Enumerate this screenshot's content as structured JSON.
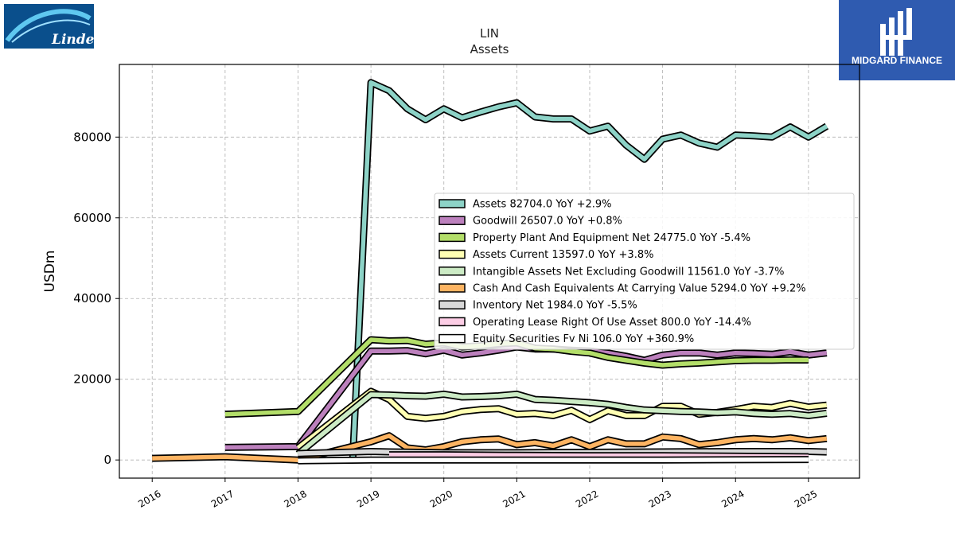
{
  "logos": {
    "left": {
      "text": "Linde",
      "bg": "#0a4f8c"
    },
    "right": {
      "text": "MIDGARD FINANCE",
      "bg": "#2f5bb0"
    }
  },
  "chart_data": {
    "type": "line",
    "title": "LIN",
    "subtitle": "Assets",
    "xlabel": "",
    "ylabel": "USDm",
    "xlim": [
      2015.55,
      2025.7
    ],
    "ylim": [
      -4500,
      98000
    ],
    "x_ticks": [
      "2016",
      "2017",
      "2018",
      "2019",
      "2020",
      "2021",
      "2022",
      "2023",
      "2024",
      "2025"
    ],
    "y_ticks": [
      0,
      20000,
      40000,
      60000,
      80000
    ],
    "y_tick_labels": [
      "0",
      "20000",
      "40000",
      "60000",
      "80000"
    ],
    "grid": true,
    "legend_position": "center-right",
    "series": [
      {
        "name": "Assets",
        "legend": "Assets  82704.0 YoY +2.9%",
        "color": "#8dd3c7",
        "points": [
          [
            2018.75,
            0
          ],
          [
            2019.0,
            93500
          ],
          [
            2019.25,
            91500
          ],
          [
            2019.5,
            87000
          ],
          [
            2019.75,
            84300
          ],
          [
            2020.0,
            87000
          ],
          [
            2020.25,
            84800
          ],
          [
            2020.5,
            86200
          ],
          [
            2020.75,
            87500
          ],
          [
            2021.0,
            88500
          ],
          [
            2021.25,
            85000
          ],
          [
            2021.5,
            84500
          ],
          [
            2021.75,
            84500
          ],
          [
            2022.0,
            81500
          ],
          [
            2022.25,
            82700
          ],
          [
            2022.5,
            78000
          ],
          [
            2022.75,
            74500
          ],
          [
            2023.0,
            79500
          ],
          [
            2023.25,
            80500
          ],
          [
            2023.5,
            78500
          ],
          [
            2023.75,
            77500
          ],
          [
            2024.0,
            80500
          ],
          [
            2024.25,
            80300
          ],
          [
            2024.5,
            80000
          ],
          [
            2024.75,
            82500
          ],
          [
            2025.0,
            80000
          ],
          [
            2025.25,
            82704
          ]
        ]
      },
      {
        "name": "Goodwill",
        "legend": "Goodwill  26507.0 YoY +0.8%",
        "color": "#bc80bd",
        "points": [
          [
            2017.0,
            3100
          ],
          [
            2018.0,
            3300
          ],
          [
            2019.0,
            27000
          ],
          [
            2019.25,
            27000
          ],
          [
            2019.5,
            27100
          ],
          [
            2019.75,
            26300
          ],
          [
            2020.0,
            27200
          ],
          [
            2020.25,
            26000
          ],
          [
            2020.5,
            26500
          ],
          [
            2020.75,
            27200
          ],
          [
            2021.0,
            28000
          ],
          [
            2021.25,
            27500
          ],
          [
            2021.5,
            27500
          ],
          [
            2021.75,
            27200
          ],
          [
            2022.0,
            27000
          ],
          [
            2022.25,
            26500
          ],
          [
            2022.5,
            25700
          ],
          [
            2022.75,
            24700
          ],
          [
            2023.0,
            26000
          ],
          [
            2023.25,
            26500
          ],
          [
            2023.5,
            26500
          ],
          [
            2023.75,
            26000
          ],
          [
            2024.0,
            26500
          ],
          [
            2024.25,
            26400
          ],
          [
            2024.5,
            26200
          ],
          [
            2024.75,
            26800
          ],
          [
            2025.0,
            26000
          ],
          [
            2025.25,
            26507
          ]
        ]
      },
      {
        "name": "Property Plant And Equipment Net",
        "legend": "Property Plant And Equipment Net  24775.0 YoY -5.4%",
        "color": "#b3de69",
        "points": [
          [
            2017.0,
            11300
          ],
          [
            2018.0,
            12000
          ],
          [
            2019.0,
            29800
          ],
          [
            2019.25,
            29500
          ],
          [
            2019.5,
            29600
          ],
          [
            2019.75,
            28700
          ],
          [
            2020.0,
            29000
          ],
          [
            2020.25,
            28000
          ],
          [
            2020.5,
            28300
          ],
          [
            2020.75,
            28800
          ],
          [
            2021.0,
            29000
          ],
          [
            2021.25,
            27700
          ],
          [
            2021.5,
            27500
          ],
          [
            2021.75,
            26900
          ],
          [
            2022.0,
            26500
          ],
          [
            2022.25,
            25400
          ],
          [
            2022.5,
            24700
          ],
          [
            2022.75,
            24000
          ],
          [
            2023.0,
            23500
          ],
          [
            2023.25,
            23800
          ],
          [
            2023.5,
            24000
          ],
          [
            2023.75,
            24300
          ],
          [
            2024.0,
            24600
          ],
          [
            2024.25,
            24700
          ],
          [
            2024.5,
            24700
          ],
          [
            2024.75,
            24800
          ],
          [
            2025.0,
            24775
          ]
        ]
      },
      {
        "name": "Assets Current",
        "legend": "Assets Current  13597.0 YoY +3.8%",
        "color": "#ffffb3",
        "points": [
          [
            2018.0,
            3000
          ],
          [
            2019.0,
            17000
          ],
          [
            2019.25,
            15000
          ],
          [
            2019.5,
            10800
          ],
          [
            2019.75,
            10300
          ],
          [
            2020.0,
            10800
          ],
          [
            2020.25,
            12000
          ],
          [
            2020.5,
            12500
          ],
          [
            2020.75,
            12700
          ],
          [
            2021.0,
            11300
          ],
          [
            2021.25,
            11500
          ],
          [
            2021.5,
            11000
          ],
          [
            2021.75,
            12300
          ],
          [
            2022.0,
            10000
          ],
          [
            2022.25,
            12200
          ],
          [
            2022.5,
            11000
          ],
          [
            2022.75,
            11000
          ],
          [
            2023.0,
            13300
          ],
          [
            2023.25,
            13300
          ],
          [
            2023.5,
            11300
          ],
          [
            2023.75,
            11800
          ],
          [
            2024.0,
            12500
          ],
          [
            2024.25,
            13300
          ],
          [
            2024.5,
            13000
          ],
          [
            2024.75,
            14000
          ],
          [
            2025.0,
            13100
          ],
          [
            2025.25,
            13597
          ]
        ]
      },
      {
        "name": "Intangible Assets Net Excluding Goodwill",
        "legend": "Intangible Assets Net Excluding Goodwill  11561.0 YoY -3.7%",
        "color": "#ccebc5",
        "points": [
          [
            2018.0,
            1500
          ],
          [
            2019.0,
            16200
          ],
          [
            2019.25,
            16100
          ],
          [
            2019.5,
            15900
          ],
          [
            2019.75,
            15800
          ],
          [
            2020.0,
            16300
          ],
          [
            2020.25,
            15600
          ],
          [
            2020.5,
            15700
          ],
          [
            2020.75,
            15900
          ],
          [
            2021.0,
            16300
          ],
          [
            2021.25,
            15000
          ],
          [
            2021.5,
            14800
          ],
          [
            2021.75,
            14500
          ],
          [
            2022.0,
            14200
          ],
          [
            2022.25,
            13800
          ],
          [
            2022.5,
            13000
          ],
          [
            2022.75,
            12400
          ],
          [
            2023.0,
            12200
          ],
          [
            2023.25,
            12000
          ],
          [
            2023.5,
            11900
          ],
          [
            2023.75,
            11700
          ],
          [
            2024.0,
            11900
          ],
          [
            2024.25,
            11500
          ],
          [
            2024.5,
            11300
          ],
          [
            2024.75,
            11500
          ],
          [
            2025.0,
            11000
          ],
          [
            2025.25,
            11561
          ]
        ]
      },
      {
        "name": "Cash And Cash Equivalents At Carrying Value",
        "legend": "Cash And Cash Equivalents At Carrying Value  5294.0 YoY +9.2%",
        "color": "#fdb462",
        "points": [
          [
            2016.0,
            400
          ],
          [
            2017.0,
            800
          ],
          [
            2018.0,
            0
          ],
          [
            2019.0,
            4500
          ],
          [
            2019.25,
            6000
          ],
          [
            2019.5,
            3000
          ],
          [
            2019.75,
            2500
          ],
          [
            2020.0,
            3300
          ],
          [
            2020.25,
            4500
          ],
          [
            2020.5,
            5000
          ],
          [
            2020.75,
            5200
          ],
          [
            2021.0,
            3800
          ],
          [
            2021.25,
            4300
          ],
          [
            2021.5,
            3500
          ],
          [
            2021.75,
            5000
          ],
          [
            2022.0,
            3300
          ],
          [
            2022.25,
            5000
          ],
          [
            2022.5,
            4000
          ],
          [
            2022.75,
            4000
          ],
          [
            2023.0,
            5700
          ],
          [
            2023.25,
            5300
          ],
          [
            2023.5,
            3800
          ],
          [
            2023.75,
            4300
          ],
          [
            2024.0,
            5000
          ],
          [
            2024.25,
            5300
          ],
          [
            2024.5,
            5000
          ],
          [
            2024.75,
            5500
          ],
          [
            2025.0,
            4800
          ],
          [
            2025.25,
            5294
          ]
        ]
      },
      {
        "name": "Inventory Net",
        "legend": "Inventory Net  1984.0 YoY -5.5%",
        "color": "#d9d9d9",
        "points": [
          [
            2018.0,
            1600
          ],
          [
            2019.0,
            2100
          ],
          [
            2019.25,
            2000
          ],
          [
            2020.0,
            1800
          ],
          [
            2021.0,
            1800
          ],
          [
            2022.0,
            1900
          ],
          [
            2023.0,
            2000
          ],
          [
            2024.0,
            2100
          ],
          [
            2025.0,
            2100
          ],
          [
            2025.25,
            1984
          ]
        ]
      },
      {
        "name": "Operating Lease Right Of Use Asset",
        "legend": "Operating Lease Right Of Use Asset  800.0 YoY -14.4%",
        "color": "#fccde5",
        "points": [
          [
            2019.25,
            1300
          ],
          [
            2020.0,
            1300
          ],
          [
            2021.0,
            1150
          ],
          [
            2022.0,
            1050
          ],
          [
            2023.0,
            1050
          ],
          [
            2024.0,
            950
          ],
          [
            2025.0,
            800
          ]
        ]
      },
      {
        "name": "Equity Securities Fv Ni",
        "legend": "Equity Securities Fv Ni  106.0 YoY +360.9%",
        "color": "#ffffff",
        "points": [
          [
            2018.0,
            -200
          ],
          [
            2019.0,
            0
          ],
          [
            2020.0,
            0
          ],
          [
            2021.0,
            0
          ],
          [
            2022.0,
            0
          ],
          [
            2023.0,
            0
          ],
          [
            2024.0,
            50
          ],
          [
            2025.0,
            106
          ]
        ]
      }
    ]
  }
}
